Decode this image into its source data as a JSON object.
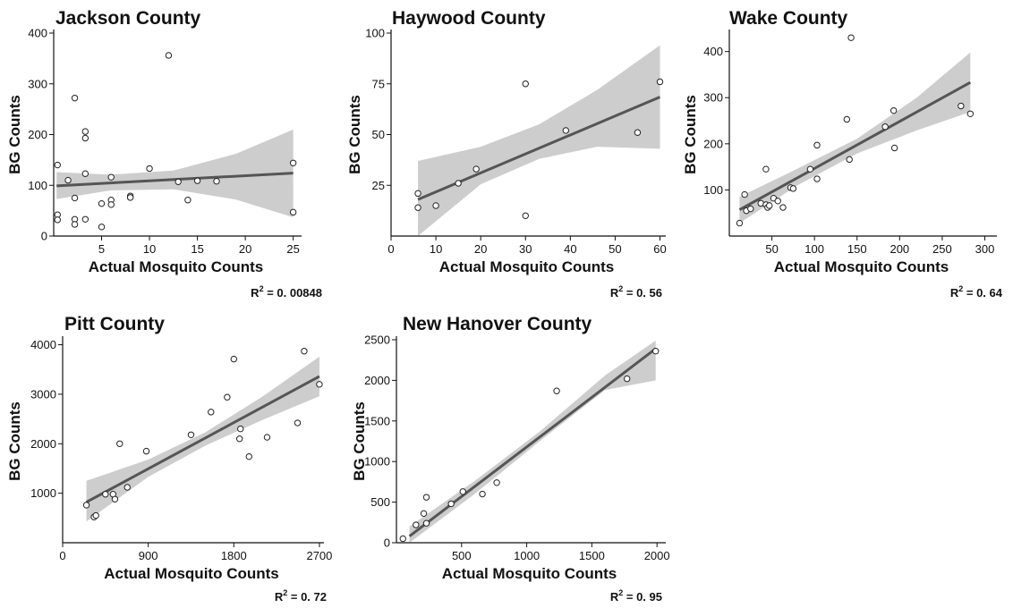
{
  "chart_data": [
    {
      "type": "scatter",
      "title": "Jackson County",
      "xlabel": "Actual Mosquito Counts",
      "ylabel": "BG Counts",
      "r2_label": "R",
      "r2_sup": "2",
      "r2_value": " = 0. 00848",
      "xlim": [
        0,
        25.5
      ],
      "ylim": [
        0,
        400
      ],
      "xticks": [
        5,
        10,
        15,
        20,
        25
      ],
      "yticks": [
        0,
        100,
        200,
        300,
        400
      ],
      "fit": {
        "x": [
          0.3,
          25
        ],
        "y": [
          99,
          124
        ]
      },
      "band": {
        "x": [
          0.3,
          6,
          12.5,
          19,
          25
        ],
        "lower": [
          73,
          90,
          92,
          72,
          37
        ],
        "upper": [
          126,
          121,
          129,
          162,
          210
        ]
      },
      "points": [
        [
          0.4,
          140
        ],
        [
          0.4,
          42
        ],
        [
          0.4,
          32
        ],
        [
          1.5,
          110
        ],
        [
          2.2,
          272
        ],
        [
          2.2,
          75
        ],
        [
          2.2,
          33
        ],
        [
          2.2,
          23
        ],
        [
          3.3,
          206
        ],
        [
          3.3,
          193
        ],
        [
          3.3,
          123
        ],
        [
          3.3,
          33
        ],
        [
          5,
          64
        ],
        [
          5,
          18
        ],
        [
          6,
          116
        ],
        [
          6,
          71
        ],
        [
          6,
          62
        ],
        [
          8,
          79
        ],
        [
          8,
          76
        ],
        [
          10,
          133
        ],
        [
          12,
          356
        ],
        [
          13,
          107
        ],
        [
          14,
          71
        ],
        [
          15,
          109
        ],
        [
          17,
          108
        ],
        [
          25,
          144
        ],
        [
          25,
          47
        ]
      ]
    },
    {
      "type": "scatter",
      "title": "Haywood County",
      "xlabel": "Actual Mosquito Counts",
      "ylabel": "BG Counts",
      "r2_label": "R",
      "r2_sup": "2",
      "r2_value": " = 0. 56",
      "xlim": [
        0,
        60.5
      ],
      "ylim": [
        0,
        100
      ],
      "xticks": [
        0,
        10,
        20,
        30,
        40,
        50,
        60
      ],
      "yticks": [
        25,
        50,
        75,
        100
      ],
      "fit": {
        "x": [
          6,
          60
        ],
        "y": [
          18,
          68.5
        ]
      },
      "band": {
        "x": [
          6,
          20,
          33,
          46,
          60
        ],
        "lower": [
          0,
          25.5,
          38,
          44,
          43
        ],
        "upper": [
          37,
          44,
          55,
          72,
          94
        ]
      },
      "points": [
        [
          6,
          21
        ],
        [
          6,
          14
        ],
        [
          10,
          15
        ],
        [
          15,
          26
        ],
        [
          19,
          33
        ],
        [
          30,
          75
        ],
        [
          30,
          10
        ],
        [
          39,
          52
        ],
        [
          55,
          51
        ],
        [
          60,
          76
        ]
      ]
    },
    {
      "type": "scatter",
      "title": "Wake County",
      "xlabel": "Actual Mosquito Counts",
      "ylabel": "BG Counts",
      "r2_label": "R",
      "r2_sup": "2",
      "r2_value": " = 0. 64",
      "xlim": [
        0,
        310
      ],
      "ylim": [
        0,
        440
      ],
      "xticks": [
        50,
        100,
        150,
        200,
        250,
        300
      ],
      "yticks": [
        100,
        200,
        300,
        400
      ],
      "fit": {
        "x": [
          12,
          283
        ],
        "y": [
          57,
          333
        ]
      },
      "band": {
        "x": [
          12,
          80,
          150,
          220,
          283
        ],
        "lower": [
          28,
          110,
          179,
          229,
          269
        ],
        "upper": [
          85,
          146,
          211,
          300,
          398
        ]
      },
      "points": [
        [
          12,
          28
        ],
        [
          18,
          90
        ],
        [
          20,
          55
        ],
        [
          25,
          59
        ],
        [
          37,
          71
        ],
        [
          43,
          145
        ],
        [
          43,
          68
        ],
        [
          45,
          62
        ],
        [
          47,
          66
        ],
        [
          52,
          82
        ],
        [
          57,
          76
        ],
        [
          63,
          62
        ],
        [
          72,
          105
        ],
        [
          75,
          103
        ],
        [
          95,
          145
        ],
        [
          103,
          197
        ],
        [
          103,
          124
        ],
        [
          138,
          253
        ],
        [
          141,
          166
        ],
        [
          143,
          430
        ],
        [
          183,
          237
        ],
        [
          193,
          272
        ],
        [
          194,
          191
        ],
        [
          272,
          282
        ],
        [
          283,
          265
        ]
      ]
    },
    {
      "type": "scatter",
      "title": "Pitt County",
      "xlabel": "Actual Mosquito Counts",
      "ylabel": "BG Counts",
      "r2_label": "R",
      "r2_sup": "2",
      "r2_value": " = 0. 72",
      "xlim": [
        0,
        2710
      ],
      "ylim": [
        0,
        4100
      ],
      "xticks": [
        0,
        900,
        1800,
        2700
      ],
      "yticks": [
        1000,
        2000,
        3000,
        4000
      ],
      "fit": {
        "x": [
          250,
          2700
        ],
        "y": [
          820,
          3360
        ]
      },
      "band": {
        "x": [
          250,
          900,
          1500,
          2100,
          2700
        ],
        "lower": [
          430,
          1330,
          1960,
          2480,
          2960
        ],
        "upper": [
          1250,
          1680,
          2230,
          2950,
          3760
        ]
      },
      "points": [
        [
          250,
          760
        ],
        [
          330,
          520
        ],
        [
          350,
          550
        ],
        [
          450,
          980
        ],
        [
          530,
          980
        ],
        [
          550,
          880
        ],
        [
          600,
          2000
        ],
        [
          680,
          1120
        ],
        [
          880,
          1850
        ],
        [
          1350,
          2180
        ],
        [
          1560,
          2640
        ],
        [
          1730,
          2940
        ],
        [
          1800,
          3710
        ],
        [
          1860,
          2100
        ],
        [
          1870,
          2300
        ],
        [
          1960,
          1740
        ],
        [
          2150,
          2130
        ],
        [
          2470,
          2420
        ],
        [
          2540,
          3870
        ],
        [
          2700,
          3200
        ]
      ]
    },
    {
      "type": "scatter",
      "title": "New Hanover County",
      "xlabel": "Actual Mosquito Counts",
      "ylabel": "BG Counts",
      "r2_label": "R",
      "r2_sup": "2",
      "r2_value": " = 0. 95",
      "xlim": [
        0,
        2040
      ],
      "ylim": [
        0,
        2500
      ],
      "xticks": [
        500,
        1000,
        1500,
        2000
      ],
      "yticks": [
        0,
        500,
        1000,
        1500,
        2000,
        2500
      ],
      "fit": {
        "x": [
          100,
          1990
        ],
        "y": [
          80,
          2390
        ]
      },
      "band": {
        "x": [
          100,
          600,
          1100,
          1600,
          1990
        ],
        "lower": [
          -40,
          600,
          1250,
          1880,
          2000
        ],
        "upper": [
          200,
          760,
          1370,
          2060,
          2490
        ]
      },
      "points": [
        [
          50,
          50
        ],
        [
          150,
          220
        ],
        [
          210,
          360
        ],
        [
          230,
          240
        ],
        [
          230,
          560
        ],
        [
          420,
          480
        ],
        [
          510,
          630
        ],
        [
          660,
          600
        ],
        [
          770,
          740
        ],
        [
          1230,
          1870
        ],
        [
          1770,
          2020
        ],
        [
          1990,
          2360
        ]
      ]
    }
  ]
}
